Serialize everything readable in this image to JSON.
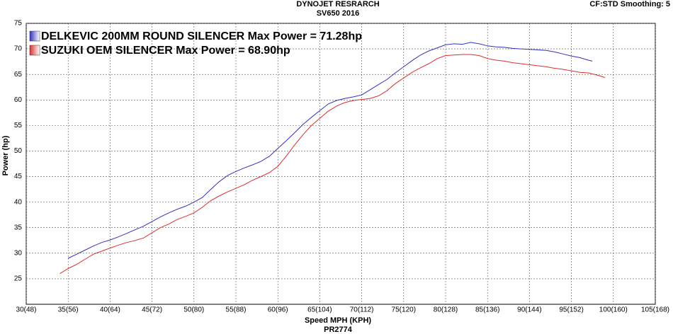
{
  "chart_data": {
    "type": "line",
    "title": "DYNOJET RESRARCH",
    "subtitle": "SV650 2016",
    "corner_note": "CF:STD Smoothing: 5",
    "x_label": "Speed MPH (KPH)",
    "footnote": "PR2774",
    "y_label": "Power (hp)",
    "xlim": [
      30,
      105
    ],
    "ylim": [
      20,
      75
    ],
    "xticks": [
      {
        "value": 30,
        "label": "30(48)"
      },
      {
        "value": 35,
        "label": "35(56)"
      },
      {
        "value": 40,
        "label": "40(64)"
      },
      {
        "value": 45,
        "label": "45(72)"
      },
      {
        "value": 50,
        "label": "50(80)"
      },
      {
        "value": 55,
        "label": "55(88)"
      },
      {
        "value": 60,
        "label": "60(96)"
      },
      {
        "value": 65,
        "label": "65(104)"
      },
      {
        "value": 70,
        "label": "70(112)"
      },
      {
        "value": 75,
        "label": "75(120)"
      },
      {
        "value": 80,
        "label": "80(128)"
      },
      {
        "value": 85,
        "label": "85(136)"
      },
      {
        "value": 90,
        "label": "90(144)"
      },
      {
        "value": 95,
        "label": "95(152)"
      },
      {
        "value": 100,
        "label": "100(160)"
      },
      {
        "value": 105,
        "label": "105(168)"
      }
    ],
    "yticks": [
      25,
      30,
      35,
      40,
      45,
      50,
      55,
      60,
      65,
      70,
      75
    ],
    "grid": true,
    "legend": "top-left",
    "series": [
      {
        "name": "DELKEVIC 200MM ROUND SILENCER Max Power = 71.28hp",
        "color": "#3333bb",
        "x": [
          35,
          36,
          37,
          38,
          39,
          40,
          41,
          42,
          43,
          44,
          45,
          46,
          47,
          48,
          49,
          50,
          51,
          52,
          53,
          54,
          55,
          56,
          57,
          58,
          59,
          60,
          61,
          62,
          63,
          64,
          65,
          66,
          67,
          68,
          69,
          70,
          71,
          72,
          73,
          74,
          75,
          76,
          77,
          78,
          79,
          80,
          81,
          82,
          83,
          84,
          85,
          86,
          87,
          88,
          89,
          90,
          91,
          92,
          93,
          94,
          95,
          96,
          97,
          97.5
        ],
        "values": [
          29.0,
          29.8,
          30.6,
          31.4,
          32.1,
          32.6,
          33.2,
          33.9,
          34.6,
          35.3,
          36.2,
          37.1,
          37.9,
          38.6,
          39.2,
          40.0,
          40.9,
          42.5,
          44.0,
          45.2,
          46.0,
          46.7,
          47.3,
          48.0,
          49.0,
          50.5,
          52.0,
          53.6,
          55.2,
          56.6,
          57.9,
          59.2,
          59.9,
          60.3,
          60.6,
          61.0,
          62.0,
          63.0,
          64.0,
          65.3,
          66.5,
          67.7,
          68.8,
          69.6,
          70.2,
          70.8,
          71.0,
          70.9,
          71.28,
          71.0,
          70.6,
          70.4,
          70.3,
          70.1,
          70.0,
          69.9,
          69.8,
          69.7,
          69.4,
          69.0,
          68.6,
          68.3,
          67.8,
          67.6
        ]
      },
      {
        "name": "SUZUKI OEM SILENCER Max Power = 68.90hp",
        "color": "#d83030",
        "x": [
          34,
          35,
          36,
          37,
          38,
          39,
          40,
          41,
          42,
          43,
          44,
          45,
          46,
          47,
          48,
          49,
          50,
          51,
          52,
          53,
          54,
          55,
          56,
          57,
          58,
          59,
          60,
          61,
          62,
          63,
          64,
          65,
          66,
          67,
          68,
          69,
          70,
          71,
          72,
          73,
          74,
          75,
          76,
          77,
          78,
          79,
          80,
          81,
          82,
          83,
          84,
          85,
          86,
          87,
          88,
          89,
          90,
          91,
          92,
          93,
          94,
          95,
          96,
          97,
          98,
          99
        ],
        "values": [
          26.0,
          27.0,
          27.8,
          28.8,
          29.8,
          30.4,
          31.0,
          31.6,
          32.1,
          32.5,
          33.0,
          34.0,
          35.0,
          35.7,
          36.6,
          37.2,
          37.9,
          39.0,
          40.3,
          41.2,
          42.0,
          42.7,
          43.4,
          44.3,
          45.0,
          45.8,
          47.0,
          49.0,
          51.2,
          53.2,
          55.0,
          56.4,
          57.8,
          58.8,
          59.5,
          59.9,
          60.1,
          60.3,
          60.8,
          61.8,
          63.2,
          64.3,
          65.4,
          66.3,
          67.1,
          68.1,
          68.7,
          68.8,
          68.9,
          68.9,
          68.7,
          68.1,
          67.8,
          67.6,
          67.3,
          67.1,
          66.9,
          66.7,
          66.5,
          66.2,
          66.0,
          65.7,
          65.4,
          65.3,
          64.9,
          64.4
        ]
      }
    ]
  }
}
